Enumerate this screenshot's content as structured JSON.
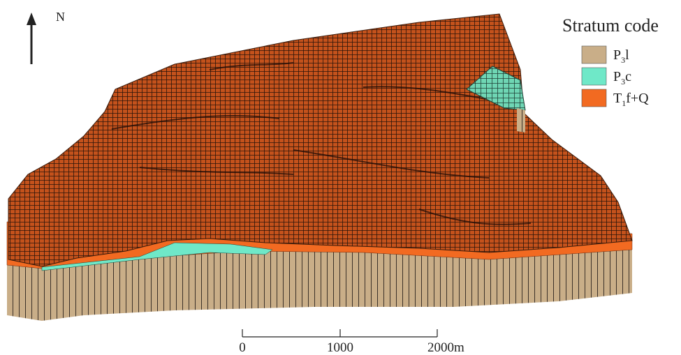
{
  "north_arrow": {
    "label": "N"
  },
  "legend": {
    "title": "Stratum code",
    "items": [
      {
        "main": "P",
        "sub": "3",
        "rest": "l",
        "color": "#c9ae88"
      },
      {
        "main": "P",
        "sub": "3",
        "rest": "c",
        "color": "#6fe8c8"
      },
      {
        "main": "T",
        "sub": "1",
        "rest": "f+Q",
        "color": "#f26a21"
      }
    ]
  },
  "scale_bar": {
    "labels": [
      "0",
      "1000",
      "2000m"
    ]
  }
}
